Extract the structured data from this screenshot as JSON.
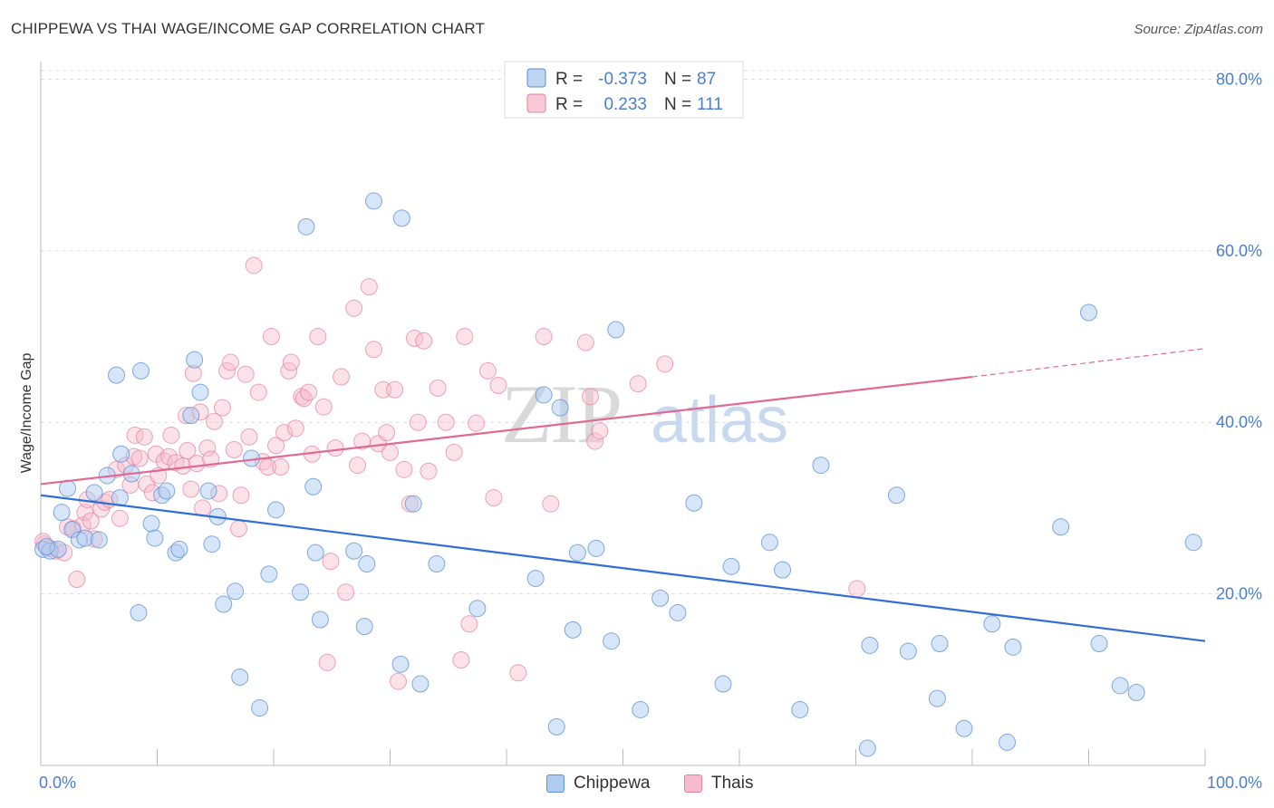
{
  "title": "CHIPPEWA VS THAI WAGE/INCOME GAP CORRELATION CHART",
  "source": "Source: ZipAtlas.com",
  "watermark": {
    "zip": "ZIP",
    "atlas": "atlas"
  },
  "colors": {
    "blue_fill": "#aecbf0",
    "blue_stroke": "#5b8fd6",
    "blue_line": "#2f6fd1",
    "pink_fill": "#f6bccd",
    "pink_stroke": "#e57fa0",
    "pink_line": "#e06a93",
    "axis_text": "#4a7fd0",
    "grid": "#dddddd"
  },
  "legend_top": {
    "rows": [
      {
        "r_label": "R =",
        "r_value": "-0.373",
        "n_label": "N =",
        "n_value": "87",
        "series": "blue"
      },
      {
        "r_label": "R =",
        "r_value": "0.233",
        "n_label": "N =",
        "n_value": "111",
        "series": "pink"
      }
    ]
  },
  "chart_data": {
    "type": "scatter",
    "title": "CHIPPEWA VS THAI WAGE/INCOME GAP CORRELATION CHART",
    "xlabel": "",
    "ylabel": "Wage/Income Gap",
    "xlim": [
      0,
      100
    ],
    "ylim": [
      0,
      81
    ],
    "x_tick_labels": [
      "0.0%",
      "100.0%"
    ],
    "y_ticks": [
      20,
      40,
      60,
      80
    ],
    "y_tick_labels": [
      "20.0%",
      "40.0%",
      "60.0%",
      "80.0%"
    ],
    "grid": true,
    "legend_position": "bottom",
    "series": [
      {
        "name": "Chippewa",
        "color": "#5b8fd6",
        "trend": {
          "x": [
            0,
            100
          ],
          "y": [
            31.5,
            14.5
          ]
        },
        "points": [
          [
            0.2,
            25.2
          ],
          [
            0.8,
            25.0
          ],
          [
            1.5,
            25.2
          ],
          [
            1.8,
            29.5
          ],
          [
            2.3,
            32.3
          ],
          [
            2.7,
            27.5
          ],
          [
            3.3,
            26.3
          ],
          [
            3.8,
            26.5
          ],
          [
            4.6,
            31.8
          ],
          [
            5.0,
            26.3
          ],
          [
            5.7,
            33.8
          ],
          [
            6.5,
            45.5
          ],
          [
            6.8,
            31.2
          ],
          [
            6.9,
            36.3
          ],
          [
            7.8,
            34.0
          ],
          [
            8.4,
            17.8
          ],
          [
            8.6,
            46.0
          ],
          [
            9.5,
            28.2
          ],
          [
            9.8,
            26.5
          ],
          [
            10.4,
            31.5
          ],
          [
            10.8,
            32.0
          ],
          [
            11.6,
            24.8
          ],
          [
            11.9,
            25.2
          ],
          [
            12.9,
            40.8
          ],
          [
            13.2,
            47.3
          ],
          [
            13.7,
            43.5
          ],
          [
            14.4,
            32.0
          ],
          [
            14.7,
            25.8
          ],
          [
            15.2,
            29.0
          ],
          [
            15.7,
            18.8
          ],
          [
            16.7,
            20.3
          ],
          [
            17.1,
            10.3
          ],
          [
            18.1,
            35.8
          ],
          [
            18.8,
            6.7
          ],
          [
            19.6,
            22.3
          ],
          [
            20.2,
            29.8
          ],
          [
            22.3,
            20.2
          ],
          [
            22.8,
            62.8
          ],
          [
            23.4,
            32.5
          ],
          [
            23.6,
            24.8
          ],
          [
            24.0,
            17.0
          ],
          [
            26.9,
            25.0
          ],
          [
            27.8,
            16.2
          ],
          [
            28.0,
            23.5
          ],
          [
            28.6,
            65.8
          ],
          [
            30.9,
            11.8
          ],
          [
            31.0,
            63.8
          ],
          [
            32.0,
            30.5
          ],
          [
            32.6,
            9.5
          ],
          [
            34.0,
            23.5
          ],
          [
            37.5,
            18.3
          ],
          [
            42.5,
            21.8
          ],
          [
            43.2,
            43.2
          ],
          [
            44.3,
            4.5
          ],
          [
            44.6,
            41.7
          ],
          [
            45.7,
            15.8
          ],
          [
            46.1,
            24.8
          ],
          [
            47.7,
            25.3
          ],
          [
            49.0,
            14.5
          ],
          [
            49.4,
            50.8
          ],
          [
            51.5,
            6.5
          ],
          [
            53.2,
            19.5
          ],
          [
            54.7,
            17.8
          ],
          [
            56.1,
            30.6
          ],
          [
            58.6,
            9.5
          ],
          [
            59.3,
            23.2
          ],
          [
            62.6,
            26.0
          ],
          [
            63.7,
            22.8
          ],
          [
            65.2,
            6.5
          ],
          [
            67.0,
            35.0
          ],
          [
            71.0,
            2.0
          ],
          [
            71.2,
            14.0
          ],
          [
            73.5,
            31.5
          ],
          [
            74.5,
            13.3
          ],
          [
            77.0,
            7.8
          ],
          [
            77.2,
            14.2
          ],
          [
            79.3,
            4.3
          ],
          [
            81.7,
            16.5
          ],
          [
            83.0,
            2.7
          ],
          [
            83.5,
            13.8
          ],
          [
            87.6,
            27.8
          ],
          [
            90.0,
            52.8
          ],
          [
            90.9,
            14.2
          ],
          [
            92.7,
            9.3
          ],
          [
            94.1,
            8.5
          ],
          [
            99.0,
            26.0
          ],
          [
            0.5,
            25.5
          ]
        ]
      },
      {
        "name": "Thais",
        "color": "#e57fa0",
        "trend": {
          "x": [
            0,
            80
          ],
          "y": [
            32.8,
            45.3
          ]
        },
        "trend_dashed": {
          "x": [
            80,
            100
          ],
          "y": [
            45.3,
            48.6
          ]
        },
        "points": [
          [
            0.3,
            25.8
          ],
          [
            0.8,
            25.3
          ],
          [
            1.3,
            25.0
          ],
          [
            2.0,
            24.8
          ],
          [
            2.3,
            27.8
          ],
          [
            2.8,
            27.6
          ],
          [
            3.1,
            21.7
          ],
          [
            3.6,
            28.0
          ],
          [
            3.8,
            29.5
          ],
          [
            4.0,
            31.0
          ],
          [
            4.3,
            28.5
          ],
          [
            4.6,
            26.4
          ],
          [
            5.2,
            29.9
          ],
          [
            5.5,
            30.7
          ],
          [
            5.9,
            31.0
          ],
          [
            6.5,
            34.5
          ],
          [
            6.8,
            28.8
          ],
          [
            7.3,
            35.0
          ],
          [
            7.7,
            32.7
          ],
          [
            8.0,
            36.0
          ],
          [
            8.1,
            38.5
          ],
          [
            8.5,
            35.8
          ],
          [
            8.9,
            38.3
          ],
          [
            9.1,
            32.8
          ],
          [
            9.6,
            31.8
          ],
          [
            9.9,
            36.3
          ],
          [
            10.1,
            33.8
          ],
          [
            10.6,
            35.5
          ],
          [
            11.0,
            36.0
          ],
          [
            11.2,
            38.5
          ],
          [
            11.6,
            35.3
          ],
          [
            12.2,
            34.9
          ],
          [
            12.5,
            40.8
          ],
          [
            12.6,
            36.7
          ],
          [
            12.9,
            32.2
          ],
          [
            13.1,
            45.7
          ],
          [
            13.4,
            35.2
          ],
          [
            13.7,
            41.2
          ],
          [
            13.9,
            30.0
          ],
          [
            14.3,
            37.0
          ],
          [
            14.6,
            35.7
          ],
          [
            14.9,
            40.1
          ],
          [
            15.3,
            31.7
          ],
          [
            15.6,
            41.7
          ],
          [
            16.0,
            46.0
          ],
          [
            16.3,
            47.0
          ],
          [
            16.6,
            36.8
          ],
          [
            17.0,
            27.6
          ],
          [
            17.2,
            31.5
          ],
          [
            17.6,
            45.6
          ],
          [
            17.9,
            38.3
          ],
          [
            18.3,
            58.3
          ],
          [
            18.7,
            43.5
          ],
          [
            19.1,
            35.4
          ],
          [
            19.5,
            34.8
          ],
          [
            19.8,
            50.0
          ],
          [
            20.2,
            37.3
          ],
          [
            20.6,
            34.8
          ],
          [
            20.9,
            38.8
          ],
          [
            21.3,
            46.0
          ],
          [
            21.5,
            47.0
          ],
          [
            21.9,
            39.3
          ],
          [
            22.4,
            43.0
          ],
          [
            22.6,
            42.8
          ],
          [
            23.0,
            43.5
          ],
          [
            23.3,
            36.3
          ],
          [
            23.8,
            50.0
          ],
          [
            24.3,
            41.8
          ],
          [
            24.6,
            12.0
          ],
          [
            24.9,
            23.8
          ],
          [
            25.3,
            37.0
          ],
          [
            25.8,
            45.3
          ],
          [
            26.2,
            20.2
          ],
          [
            26.9,
            53.3
          ],
          [
            27.2,
            35.0
          ],
          [
            27.6,
            37.8
          ],
          [
            28.2,
            55.8
          ],
          [
            28.6,
            48.5
          ],
          [
            29.0,
            37.5
          ],
          [
            29.4,
            43.8
          ],
          [
            29.7,
            38.8
          ],
          [
            30.0,
            36.5
          ],
          [
            30.4,
            43.8
          ],
          [
            30.7,
            9.8
          ],
          [
            31.2,
            34.5
          ],
          [
            31.7,
            30.5
          ],
          [
            32.1,
            49.8
          ],
          [
            32.4,
            40.0
          ],
          [
            32.9,
            49.5
          ],
          [
            33.3,
            34.3
          ],
          [
            34.1,
            44.0
          ],
          [
            34.8,
            40.0
          ],
          [
            35.5,
            36.5
          ],
          [
            36.1,
            12.3
          ],
          [
            36.4,
            50.0
          ],
          [
            36.8,
            16.5
          ],
          [
            37.4,
            39.9
          ],
          [
            38.4,
            46.0
          ],
          [
            38.9,
            31.2
          ],
          [
            39.3,
            44.3
          ],
          [
            41.0,
            10.8
          ],
          [
            43.2,
            50.0
          ],
          [
            43.8,
            30.5
          ],
          [
            46.8,
            49.3
          ],
          [
            47.2,
            43.0
          ],
          [
            47.6,
            37.8
          ],
          [
            48.0,
            39.0
          ],
          [
            51.3,
            44.5
          ],
          [
            53.6,
            46.8
          ],
          [
            70.1,
            20.6
          ],
          [
            0.2,
            26.1
          ]
        ]
      }
    ]
  },
  "legend_bottom": [
    {
      "label": "Chippewa",
      "series": "blue"
    },
    {
      "label": "Thais",
      "series": "pink"
    }
  ]
}
